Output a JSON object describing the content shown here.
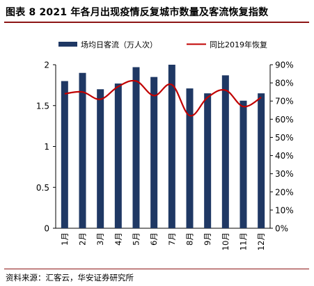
{
  "header": {
    "title": "图表 8 2021 年各月出现疫情反复城市数量及客流恢复指数"
  },
  "footer": {
    "source": "资料来源：汇客云，华安证券研究所"
  },
  "colors": {
    "bar": "#1f3864",
    "line": "#c00000",
    "rule": "#8c1515"
  },
  "chart_data": {
    "type": "bar",
    "title": "",
    "categories": [
      "1月",
      "2月",
      "3月",
      "4月",
      "5月",
      "6月",
      "7月",
      "8月",
      "9月",
      "10月",
      "11月",
      "12月"
    ],
    "series": [
      {
        "name": "场均日客流（万人次）",
        "type": "bar",
        "axis": "left",
        "values": [
          1.8,
          1.9,
          1.7,
          1.77,
          1.97,
          1.85,
          2.0,
          1.71,
          1.65,
          1.87,
          1.56,
          1.65
        ]
      },
      {
        "name": "同比2019年恢复",
        "type": "line",
        "axis": "right",
        "values": [
          0.74,
          0.75,
          0.71,
          0.78,
          0.81,
          0.73,
          0.79,
          0.62,
          0.72,
          0.76,
          0.67,
          0.72
        ]
      }
    ],
    "y_left": {
      "min": 0,
      "max": 2,
      "ticks": [
        "0",
        "0.5",
        "1",
        "1.5",
        "2"
      ],
      "tick_values": [
        0,
        0.5,
        1,
        1.5,
        2
      ]
    },
    "y_right": {
      "min": 0,
      "max": 0.9,
      "ticks": [
        "0%",
        "10%",
        "20%",
        "30%",
        "40%",
        "50%",
        "60%",
        "70%",
        "80%",
        "90%"
      ],
      "tick_values": [
        0,
        0.1,
        0.2,
        0.3,
        0.4,
        0.5,
        0.6,
        0.7,
        0.8,
        0.9
      ]
    },
    "grid": false,
    "legend_position": "top"
  }
}
